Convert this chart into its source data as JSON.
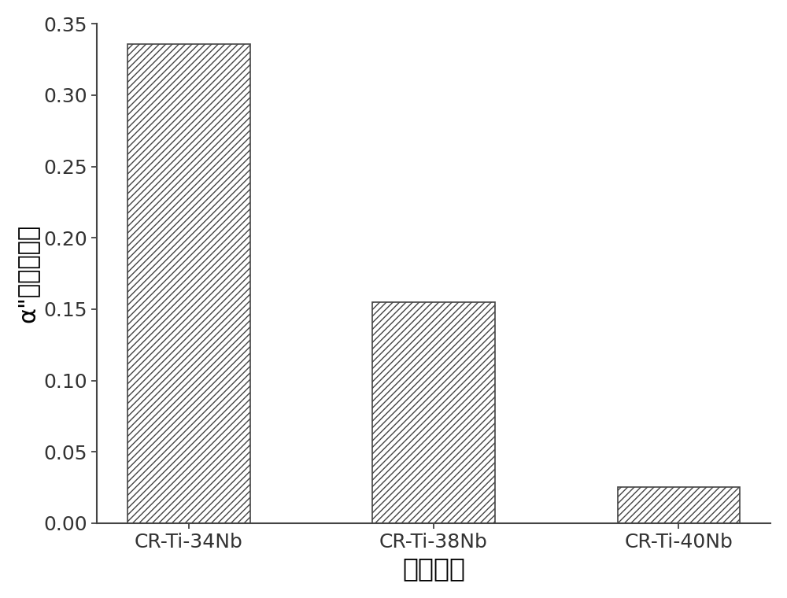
{
  "categories": [
    "CR-Ti-34Nb",
    "CR-Ti-38Nb",
    "CR-Ti-40Nb"
  ],
  "values": [
    0.336,
    0.155,
    0.025
  ],
  "bar_color": "#ffffff",
  "bar_edgecolor": "#444444",
  "hatch_pattern": "////",
  "xlabel": "三种合金",
  "ylabel": "α\"相体积分数",
  "ylim": [
    0,
    0.35
  ],
  "yticks": [
    0.0,
    0.05,
    0.1,
    0.15,
    0.2,
    0.25,
    0.3,
    0.35
  ],
  "xlabel_fontsize": 24,
  "ylabel_fontsize": 22,
  "tick_fontsize": 18,
  "bar_width": 0.5,
  "background_color": "#ffffff",
  "spine_linewidth": 1.5
}
